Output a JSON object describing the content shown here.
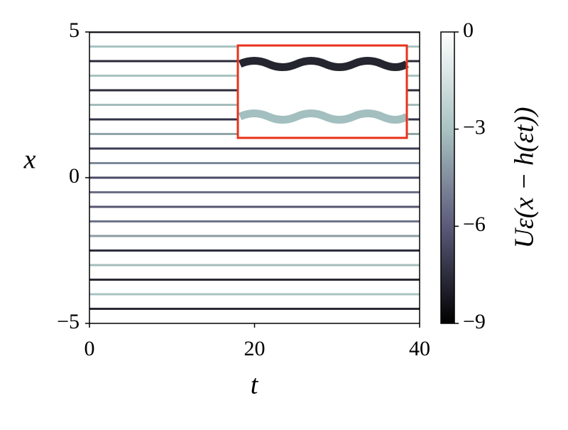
{
  "chart_data": {
    "type": "line",
    "x_label": "t",
    "y_label": "x",
    "colorbar_label": "Uε(x − h(εt))",
    "x": [
      0,
      40
    ],
    "xlim": [
      0,
      40
    ],
    "xticks": [
      0,
      20,
      40
    ],
    "ylim": [
      -5,
      5
    ],
    "yticks": [
      {
        "value": -5,
        "label": "−5"
      },
      0,
      5
    ],
    "clim": [
      -9,
      0
    ],
    "cticks": [
      {
        "value": -9,
        "label": "−9"
      },
      {
        "value": -6,
        "label": "−6"
      },
      {
        "value": -3,
        "label": "−3"
      },
      0
    ],
    "colormap": [
      "#000000",
      "#5c5a7a",
      "#a9c3c2",
      "#ffffff"
    ],
    "series": [
      {
        "color": "#2a2a35",
        "values": [
          5,
          5
        ]
      },
      {
        "color": "#a8c4c2",
        "values": [
          4.5,
          4.5
        ]
      },
      {
        "color": "#2a2a38",
        "values": [
          4,
          4
        ]
      },
      {
        "color": "#a9c3c1",
        "values": [
          3.5,
          3.5
        ]
      },
      {
        "color": "#2c2c3a",
        "values": [
          3,
          3
        ]
      },
      {
        "color": "#a3bdbb",
        "values": [
          2.5,
          2.5
        ]
      },
      {
        "color": "#33334a",
        "values": [
          2,
          2
        ]
      },
      {
        "color": "#8fa5a8",
        "values": [
          1.5,
          1.5
        ]
      },
      {
        "color": "#3c3c56",
        "values": [
          1,
          1
        ]
      },
      {
        "color": "#7d8a98",
        "values": [
          0.5,
          0.5
        ]
      },
      {
        "color": "#4a4a66",
        "values": [
          0,
          0
        ]
      },
      {
        "color": "#6c6f85",
        "values": [
          -0.5,
          -0.5
        ]
      },
      {
        "color": "#55566f",
        "values": [
          -1,
          -1
        ]
      },
      {
        "color": "#6e7388",
        "values": [
          -1.5,
          -1.5
        ]
      },
      {
        "color": "#8b9ca2",
        "values": [
          -2,
          -2
        ]
      },
      {
        "color": "#2e2e3e",
        "values": [
          -2.5,
          -2.5
        ]
      },
      {
        "color": "#a3bdbb",
        "values": [
          -3,
          -3
        ]
      },
      {
        "color": "#2a2a36",
        "values": [
          -3.5,
          -3.5
        ]
      },
      {
        "color": "#a8c4c2",
        "values": [
          -4,
          -4
        ]
      },
      {
        "color": "#2a2a35",
        "values": [
          -4.5,
          -4.5
        ]
      }
    ]
  }
}
